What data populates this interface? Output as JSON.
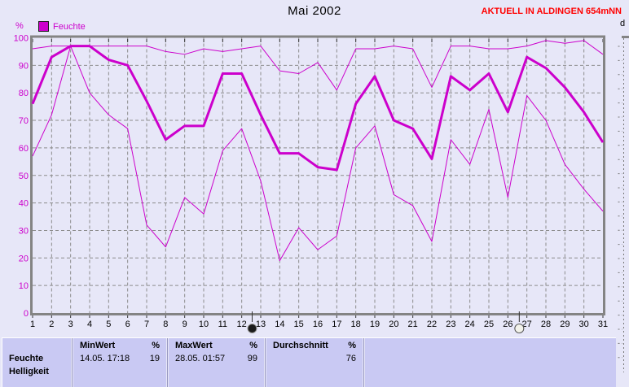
{
  "header": {
    "title": "Mai 2002",
    "station_banner": "AKTUELL IN ALDINGEN 654mNN",
    "next_panel_label": "d"
  },
  "legend": {
    "unit": "%",
    "label": "Feuchte"
  },
  "chart_data": {
    "type": "line",
    "title": "Mai 2002",
    "ylabel": "%",
    "ylim": [
      0,
      100
    ],
    "yticks": [
      0,
      10,
      20,
      30,
      40,
      50,
      60,
      70,
      80,
      90,
      100
    ],
    "x": [
      1,
      2,
      3,
      4,
      5,
      6,
      7,
      8,
      9,
      10,
      11,
      12,
      13,
      14,
      15,
      16,
      17,
      18,
      19,
      20,
      21,
      22,
      23,
      24,
      25,
      26,
      27,
      28,
      29,
      30,
      31
    ],
    "grid": true,
    "line_color": "#cc00cc",
    "legend_position": "top-left",
    "series": [
      {
        "key": "max",
        "name": "max",
        "width": 1,
        "values": [
          96,
          97,
          97,
          97,
          97,
          97,
          97,
          95,
          94,
          96,
          95,
          96,
          97,
          88,
          87,
          91,
          81,
          96,
          96,
          97,
          96,
          82,
          97,
          97,
          96,
          96,
          97,
          99,
          98,
          99,
          94
        ]
      },
      {
        "key": "mean",
        "name": "mean",
        "width": 3,
        "values": [
          76,
          93,
          97,
          97,
          92,
          90,
          77,
          63,
          68,
          68,
          87,
          87,
          72,
          58,
          58,
          53,
          52,
          76,
          86,
          70,
          67,
          56,
          86,
          81,
          87,
          73,
          93,
          89,
          82,
          73,
          62
        ]
      },
      {
        "key": "min",
        "name": "min",
        "width": 1,
        "values": [
          57,
          72,
          97,
          80,
          72,
          67,
          32,
          24,
          42,
          36,
          59,
          67,
          48,
          19,
          31,
          23,
          28,
          60,
          68,
          43,
          39,
          26,
          63,
          54,
          74,
          42,
          79,
          70,
          54,
          45,
          37
        ]
      }
    ],
    "markers": [
      {
        "type": "new-moon",
        "day": 12.55
      },
      {
        "type": "full-moon",
        "day": 26.6
      }
    ]
  },
  "table": {
    "sensor_label": "Feuchte",
    "next_sensor_label": "Helligkeit",
    "min": {
      "header": "MinWert",
      "unit": "%",
      "datetime": "14.05.  17:18",
      "value": "19"
    },
    "max": {
      "header": "MaxWert",
      "unit": "%",
      "datetime": "28.05.  01:57",
      "value": "99"
    },
    "avg": {
      "header": "Durchschnitt",
      "unit": "%",
      "value": "76"
    }
  }
}
